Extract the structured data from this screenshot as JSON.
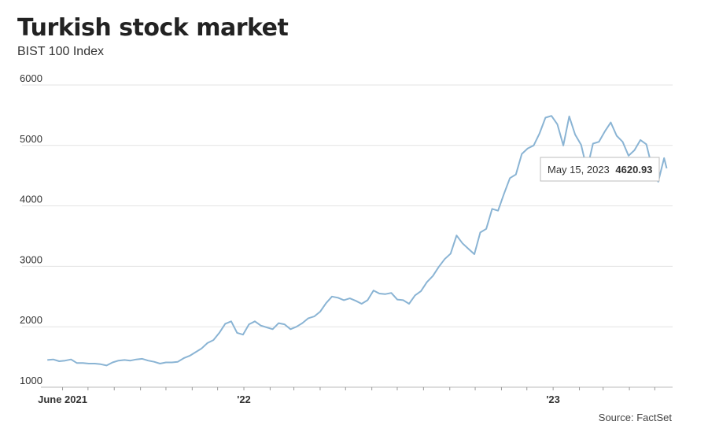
{
  "chart_data": {
    "type": "line",
    "title": "Turkish stock market",
    "subtitle": "BIST 100 Index",
    "source": "Source: FactSet",
    "ylim": [
      1000,
      6000
    ],
    "yticks": [
      "6000",
      "5000",
      "4000",
      "3000",
      "2000",
      "1000"
    ],
    "ytick_values": [
      6000,
      5000,
      4000,
      3000,
      2000,
      1000
    ],
    "xlim": [
      "2021-05-12",
      "2023-05-22"
    ],
    "xtick_labels": [
      {
        "label": "June 2021",
        "date": "2021-06-01"
      },
      {
        "label": "'22",
        "date": "2022-01-01"
      },
      {
        "label": "'23",
        "date": "2023-01-01"
      }
    ],
    "grid": true,
    "series_color": "#8ab4d4",
    "series": [
      {
        "x": [
          "2021-05-14",
          "2021-05-21",
          "2021-05-28",
          "2021-06-04",
          "2021-06-11",
          "2021-06-18",
          "2021-06-25",
          "2021-07-02",
          "2021-07-09",
          "2021-07-16",
          "2021-07-23",
          "2021-07-30",
          "2021-08-06",
          "2021-08-13",
          "2021-08-20",
          "2021-08-27",
          "2021-09-03",
          "2021-09-10",
          "2021-09-17",
          "2021-09-24",
          "2021-10-01",
          "2021-10-08",
          "2021-10-15",
          "2021-10-22",
          "2021-10-29",
          "2021-11-05",
          "2021-11-12",
          "2021-11-19",
          "2021-11-26",
          "2021-12-03",
          "2021-12-10",
          "2021-12-17",
          "2021-12-24",
          "2021-12-31",
          "2022-01-07",
          "2022-01-14",
          "2022-01-21",
          "2022-01-28",
          "2022-02-04",
          "2022-02-11",
          "2022-02-18",
          "2022-02-25",
          "2022-03-04",
          "2022-03-11",
          "2022-03-18",
          "2022-03-25",
          "2022-04-01",
          "2022-04-08",
          "2022-04-15",
          "2022-04-22",
          "2022-04-29",
          "2022-05-06",
          "2022-05-13",
          "2022-05-20",
          "2022-05-27",
          "2022-06-03",
          "2022-06-10",
          "2022-06-17",
          "2022-06-24",
          "2022-07-01",
          "2022-07-08",
          "2022-07-15",
          "2022-07-22",
          "2022-07-29",
          "2022-08-05",
          "2022-08-12",
          "2022-08-19",
          "2022-08-26",
          "2022-09-02",
          "2022-09-09",
          "2022-09-16",
          "2022-09-23",
          "2022-09-30",
          "2022-10-07",
          "2022-10-14",
          "2022-10-21",
          "2022-10-28",
          "2022-11-04",
          "2022-11-11",
          "2022-11-18",
          "2022-11-25",
          "2022-12-02",
          "2022-12-09",
          "2022-12-16",
          "2022-12-23",
          "2022-12-30",
          "2023-01-06",
          "2023-01-13",
          "2023-01-20",
          "2023-01-27",
          "2023-02-03",
          "2023-02-10",
          "2023-02-17",
          "2023-02-24",
          "2023-03-03",
          "2023-03-10",
          "2023-03-17",
          "2023-03-24",
          "2023-03-31",
          "2023-04-07",
          "2023-04-14",
          "2023-04-21",
          "2023-04-28",
          "2023-05-05",
          "2023-05-12",
          "2023-05-15"
        ],
        "y": [
          1450,
          1460,
          1430,
          1440,
          1460,
          1400,
          1400,
          1390,
          1390,
          1380,
          1360,
          1410,
          1440,
          1450,
          1440,
          1460,
          1470,
          1440,
          1420,
          1390,
          1410,
          1410,
          1420,
          1480,
          1520,
          1580,
          1640,
          1730,
          1780,
          1900,
          2050,
          2090,
          1900,
          1870,
          2040,
          2090,
          2020,
          1990,
          1960,
          2060,
          2040,
          1960,
          2000,
          2060,
          2140,
          2170,
          2250,
          2390,
          2500,
          2480,
          2440,
          2470,
          2430,
          2380,
          2440,
          2600,
          2550,
          2540,
          2560,
          2450,
          2440,
          2380,
          2520,
          2590,
          2740,
          2840,
          2990,
          3120,
          3210,
          3510,
          3380,
          3290,
          3200,
          3560,
          3620,
          3950,
          3920,
          4200,
          4460,
          4520,
          4860,
          4950,
          5000,
          5200,
          5460,
          5490,
          5350,
          5000,
          5480,
          5180,
          5010,
          4600,
          5030,
          5060,
          5230,
          5380,
          5160,
          5060,
          4830,
          4920,
          5090,
          5020,
          4620,
          4400,
          4790,
          4621
        ]
      }
    ],
    "tooltip": {
      "date": "May 15, 2023",
      "value": "4620.93"
    }
  }
}
